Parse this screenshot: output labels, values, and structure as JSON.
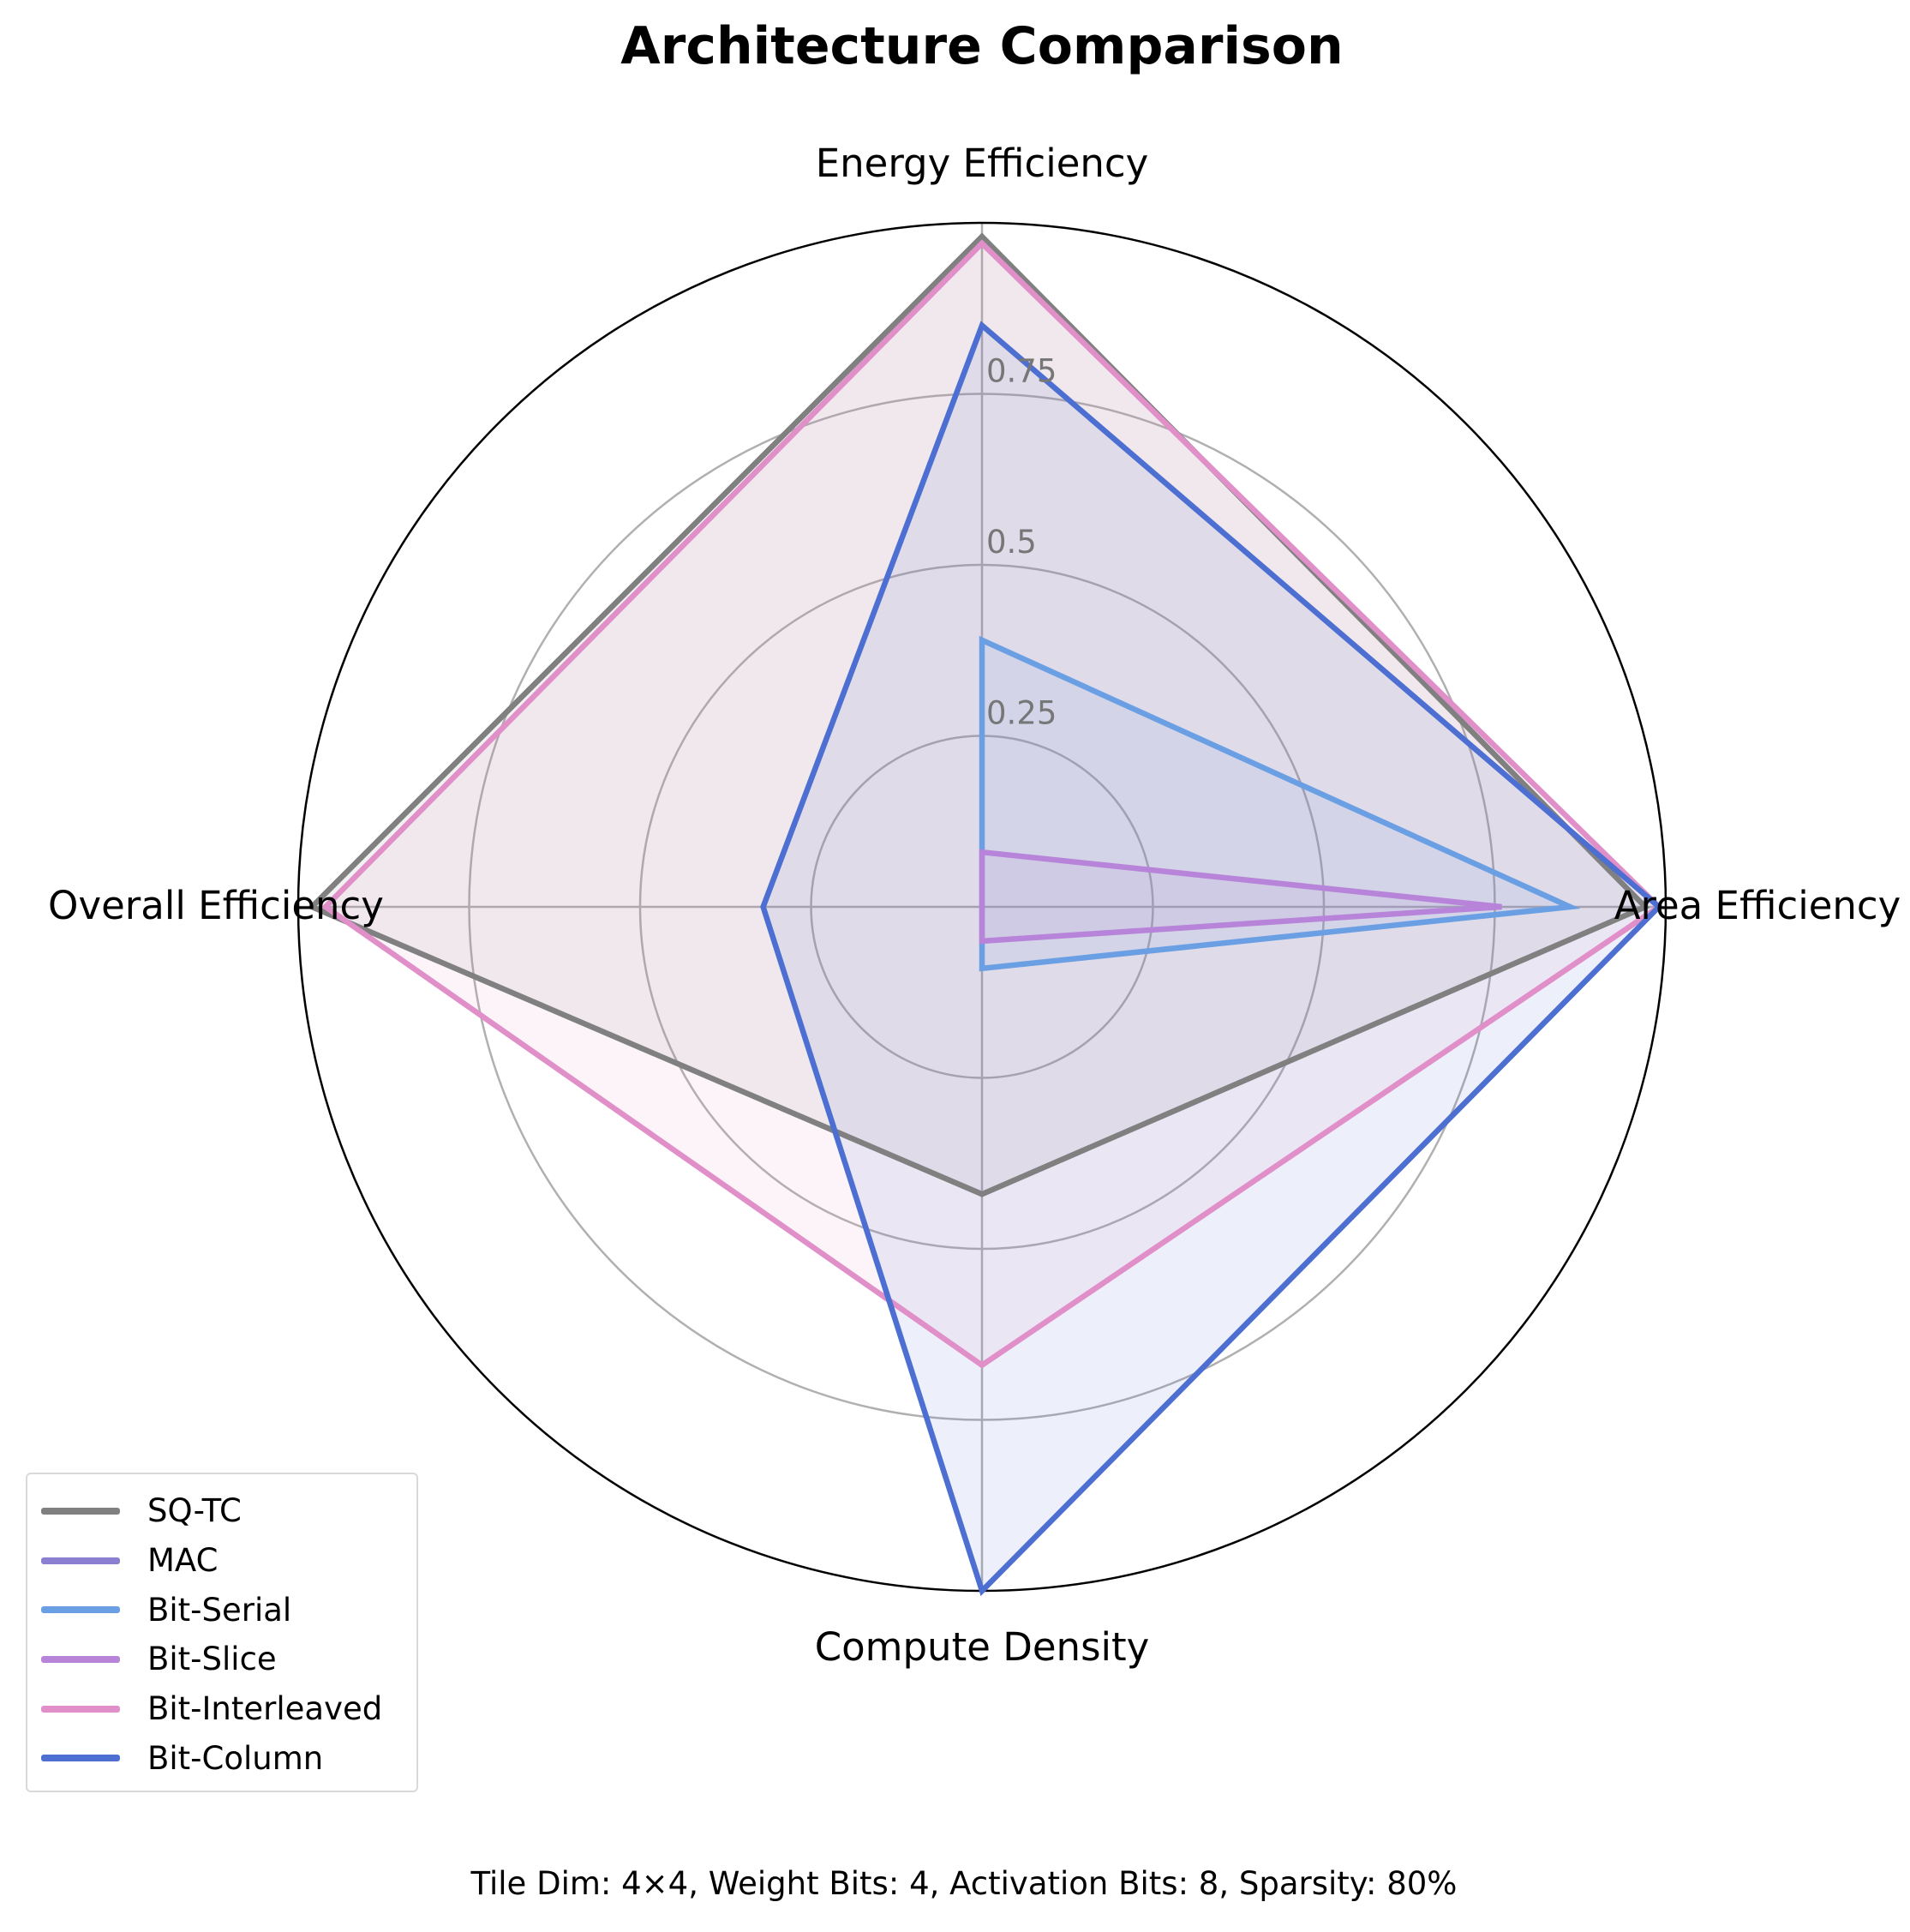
{
  "chart_data": {
    "type": "radar",
    "title": "Architecture Comparison",
    "footnote": "Tile Dim: 4×4, Weight Bits: 4, Activation Bits: 8, Sparsity: 80%",
    "axes": [
      "Energy Efficiency",
      "Area Efficiency",
      "Compute Density",
      "Overall Efficiency"
    ],
    "rlim": [
      0,
      1
    ],
    "rticks": [
      0.25,
      0.5,
      0.75
    ],
    "rtick_labels": [
      "0.25",
      "0.5",
      "0.75"
    ],
    "grid": true,
    "legend_position": "lower-left",
    "series": [
      {
        "name": "SQ-TC",
        "values": [
          0.98,
          0.97,
          0.42,
          0.98
        ],
        "color": "#808080",
        "fill_opacity": 0.1
      },
      {
        "name": "MAC",
        "values": [
          0.0,
          0.0,
          0.0,
          0.0
        ],
        "color": "#8a7fd0",
        "fill_opacity": 0.1
      },
      {
        "name": "Bit-Serial",
        "values": [
          0.39,
          0.86,
          0.09,
          0.0
        ],
        "color": "#6a9fe4",
        "fill_opacity": 0.1
      },
      {
        "name": "Bit-Slice",
        "values": [
          0.08,
          0.76,
          0.05,
          0.0
        ],
        "color": "#b784d9",
        "fill_opacity": 0.1
      },
      {
        "name": "Bit-Interleaved",
        "values": [
          0.97,
          0.99,
          0.67,
          0.96
        ],
        "color": "#e08fc8",
        "fill_opacity": 0.1
      },
      {
        "name": "Bit-Column",
        "values": [
          0.85,
          0.99,
          1.0,
          0.32
        ],
        "color": "#4c6fd1",
        "fill_opacity": 0.1
      }
    ]
  }
}
